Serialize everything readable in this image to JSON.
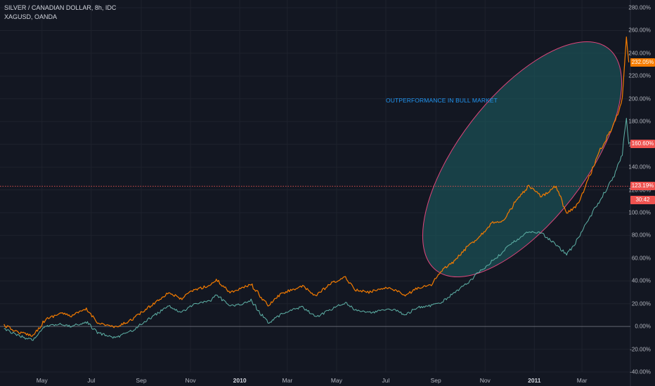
{
  "legend": {
    "symbol_line": "SILVER / CANADIAN DOLLAR, 8h, IDC",
    "compare_line": "XAGUSD, OANDA"
  },
  "annotation": "OUTPERFORMANCE IN BULL MARKET",
  "colors": {
    "background": "#131722",
    "primary_series": "#f57c00",
    "compare_series": "#5fb3a8",
    "ellipse_fill": "#1b5a5e",
    "ellipse_stroke": "#e0457b",
    "current_line": "#ef5350"
  },
  "price_tags": [
    {
      "label": "232.05%",
      "color": "#f57c00",
      "value": 232.05
    },
    {
      "label": "160.60%",
      "color": "#ef5350",
      "value": 160.6
    },
    {
      "label": "123.19%",
      "color": "#ef5350",
      "value": 123.19
    },
    {
      "label": "30:42",
      "color": "#ef5350",
      "value": 111
    }
  ],
  "chart_data": {
    "type": "line",
    "y_unit": "%",
    "ylim": [
      -40,
      280
    ],
    "y_ticks": [
      "280.00%",
      "260.00%",
      "240.00%",
      "220.00%",
      "200.00%",
      "180.00%",
      "160.00%",
      "140.00%",
      "120.00%",
      "100.00%",
      "80.00%",
      "60.00%",
      "40.00%",
      "20.00%",
      "0.00%",
      "-20.00%",
      "-40.00%"
    ],
    "y_tick_values": [
      280,
      260,
      240,
      220,
      200,
      180,
      160,
      140,
      120,
      100,
      80,
      60,
      40,
      20,
      0,
      -20,
      -40
    ],
    "x_ticks": [
      "May",
      "Jul",
      "Sep",
      "Nov",
      "2010",
      "Mar",
      "May",
      "Jul",
      "Sep",
      "Nov",
      "2011",
      "Mar"
    ],
    "x_tick_dates": [
      "2009-05-01",
      "2009-07-01",
      "2009-09-01",
      "2009-11-01",
      "2010-01-01",
      "2010-03-01",
      "2010-05-01",
      "2010-07-01",
      "2010-09-01",
      "2010-11-01",
      "2011-01-01",
      "2011-03-01"
    ],
    "x_bold": [
      "2010",
      "2011"
    ],
    "xlim": [
      "2009-03-10",
      "2011-04-30"
    ],
    "grid": true,
    "series": [
      {
        "name": "SILVER / CANADIAN DOLLAR",
        "x": [
          "2009-03-15",
          "2009-04-01",
          "2009-04-20",
          "2009-05-05",
          "2009-05-25",
          "2009-06-05",
          "2009-06-25",
          "2009-07-10",
          "2009-08-01",
          "2009-08-20",
          "2009-09-05",
          "2009-09-20",
          "2009-10-05",
          "2009-10-20",
          "2009-11-05",
          "2009-11-25",
          "2009-12-03",
          "2009-12-20",
          "2010-01-05",
          "2010-01-15",
          "2010-02-05",
          "2010-02-20",
          "2010-03-05",
          "2010-03-20",
          "2010-04-05",
          "2010-04-25",
          "2010-05-12",
          "2010-05-25",
          "2010-06-10",
          "2010-06-28",
          "2010-07-10",
          "2010-07-25",
          "2010-08-10",
          "2010-08-25",
          "2010-09-10",
          "2010-09-25",
          "2010-10-10",
          "2010-10-25",
          "2010-11-09",
          "2010-11-25",
          "2010-12-07",
          "2010-12-25",
          "2011-01-10",
          "2011-01-28",
          "2011-02-10",
          "2011-02-25",
          "2011-03-10",
          "2011-03-25",
          "2011-04-10",
          "2011-04-20",
          "2011-04-25",
          "2011-04-28"
        ],
        "values": [
          1,
          -5,
          -8,
          6,
          12,
          9,
          15,
          3,
          -1,
          6,
          14,
          22,
          30,
          24,
          32,
          36,
          41,
          30,
          34,
          37,
          18,
          28,
          32,
          35,
          27,
          38,
          43,
          32,
          30,
          34,
          33,
          27,
          34,
          36,
          50,
          58,
          70,
          79,
          91,
          93,
          108,
          123,
          114,
          124,
          99,
          108,
          132,
          157,
          178,
          200,
          256,
          232
        ]
      },
      {
        "name": "XAGUSD, OANDA",
        "x": [
          "2009-03-15",
          "2009-04-01",
          "2009-04-20",
          "2009-05-05",
          "2009-05-25",
          "2009-06-05",
          "2009-06-25",
          "2009-07-10",
          "2009-08-01",
          "2009-08-20",
          "2009-09-05",
          "2009-09-20",
          "2009-10-05",
          "2009-10-20",
          "2009-11-05",
          "2009-11-25",
          "2009-12-03",
          "2009-12-20",
          "2010-01-05",
          "2010-01-15",
          "2010-02-05",
          "2010-02-20",
          "2010-03-05",
          "2010-03-20",
          "2010-04-05",
          "2010-04-25",
          "2010-05-12",
          "2010-05-25",
          "2010-06-10",
          "2010-06-28",
          "2010-07-10",
          "2010-07-25",
          "2010-08-10",
          "2010-08-25",
          "2010-09-10",
          "2010-09-25",
          "2010-10-10",
          "2010-10-25",
          "2010-11-09",
          "2010-11-25",
          "2010-12-07",
          "2010-12-25",
          "2011-01-10",
          "2011-01-28",
          "2011-02-10",
          "2011-02-25",
          "2011-03-10",
          "2011-03-25",
          "2011-04-10",
          "2011-04-20",
          "2011-04-25",
          "2011-04-28"
        ],
        "values": [
          -2,
          -8,
          -12,
          0,
          2,
          0,
          4,
          -6,
          -10,
          -4,
          4,
          11,
          18,
          12,
          20,
          22,
          28,
          18,
          20,
          23,
          3,
          10,
          14,
          17,
          8,
          15,
          21,
          14,
          12,
          14,
          15,
          10,
          17,
          18,
          22,
          30,
          38,
          48,
          57,
          67,
          75,
          83,
          82,
          72,
          63,
          78,
          95,
          113,
          132,
          152,
          183,
          160
        ]
      }
    ]
  }
}
